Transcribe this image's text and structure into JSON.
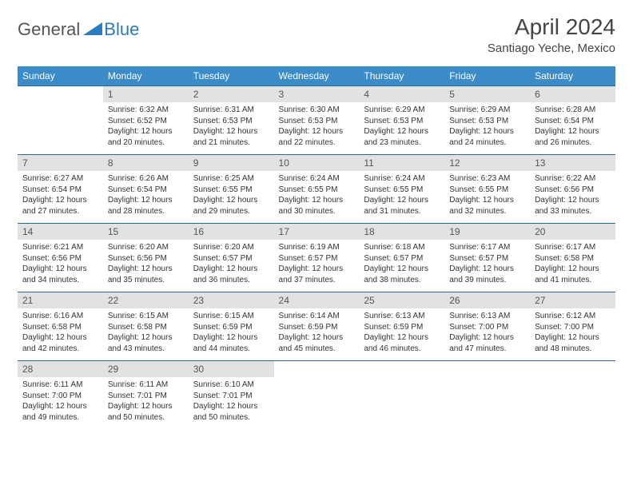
{
  "logo": {
    "text1": "General",
    "text2": "Blue",
    "color1": "#555555",
    "color2": "#2a7bbf",
    "icon_color": "#2a7bbf"
  },
  "title": "April 2024",
  "location": "Santiago Yeche, Mexico",
  "colors": {
    "header_bg": "#3b8bc9",
    "header_text": "#ffffff",
    "daynum_bg": "#e2e2e2",
    "border": "#2a6a9e",
    "text": "#333333"
  },
  "fonts": {
    "title_size": 28,
    "location_size": 15,
    "header_size": 12,
    "daynum_size": 12,
    "body_size": 10
  },
  "weekdays": [
    "Sunday",
    "Monday",
    "Tuesday",
    "Wednesday",
    "Thursday",
    "Friday",
    "Saturday"
  ],
  "weeks": [
    [
      null,
      {
        "day": "1",
        "sunrise": "Sunrise: 6:32 AM",
        "sunset": "Sunset: 6:52 PM",
        "daylight1": "Daylight: 12 hours",
        "daylight2": "and 20 minutes."
      },
      {
        "day": "2",
        "sunrise": "Sunrise: 6:31 AM",
        "sunset": "Sunset: 6:53 PM",
        "daylight1": "Daylight: 12 hours",
        "daylight2": "and 21 minutes."
      },
      {
        "day": "3",
        "sunrise": "Sunrise: 6:30 AM",
        "sunset": "Sunset: 6:53 PM",
        "daylight1": "Daylight: 12 hours",
        "daylight2": "and 22 minutes."
      },
      {
        "day": "4",
        "sunrise": "Sunrise: 6:29 AM",
        "sunset": "Sunset: 6:53 PM",
        "daylight1": "Daylight: 12 hours",
        "daylight2": "and 23 minutes."
      },
      {
        "day": "5",
        "sunrise": "Sunrise: 6:29 AM",
        "sunset": "Sunset: 6:53 PM",
        "daylight1": "Daylight: 12 hours",
        "daylight2": "and 24 minutes."
      },
      {
        "day": "6",
        "sunrise": "Sunrise: 6:28 AM",
        "sunset": "Sunset: 6:54 PM",
        "daylight1": "Daylight: 12 hours",
        "daylight2": "and 26 minutes."
      }
    ],
    [
      {
        "day": "7",
        "sunrise": "Sunrise: 6:27 AM",
        "sunset": "Sunset: 6:54 PM",
        "daylight1": "Daylight: 12 hours",
        "daylight2": "and 27 minutes."
      },
      {
        "day": "8",
        "sunrise": "Sunrise: 6:26 AM",
        "sunset": "Sunset: 6:54 PM",
        "daylight1": "Daylight: 12 hours",
        "daylight2": "and 28 minutes."
      },
      {
        "day": "9",
        "sunrise": "Sunrise: 6:25 AM",
        "sunset": "Sunset: 6:55 PM",
        "daylight1": "Daylight: 12 hours",
        "daylight2": "and 29 minutes."
      },
      {
        "day": "10",
        "sunrise": "Sunrise: 6:24 AM",
        "sunset": "Sunset: 6:55 PM",
        "daylight1": "Daylight: 12 hours",
        "daylight2": "and 30 minutes."
      },
      {
        "day": "11",
        "sunrise": "Sunrise: 6:24 AM",
        "sunset": "Sunset: 6:55 PM",
        "daylight1": "Daylight: 12 hours",
        "daylight2": "and 31 minutes."
      },
      {
        "day": "12",
        "sunrise": "Sunrise: 6:23 AM",
        "sunset": "Sunset: 6:55 PM",
        "daylight1": "Daylight: 12 hours",
        "daylight2": "and 32 minutes."
      },
      {
        "day": "13",
        "sunrise": "Sunrise: 6:22 AM",
        "sunset": "Sunset: 6:56 PM",
        "daylight1": "Daylight: 12 hours",
        "daylight2": "and 33 minutes."
      }
    ],
    [
      {
        "day": "14",
        "sunrise": "Sunrise: 6:21 AM",
        "sunset": "Sunset: 6:56 PM",
        "daylight1": "Daylight: 12 hours",
        "daylight2": "and 34 minutes."
      },
      {
        "day": "15",
        "sunrise": "Sunrise: 6:20 AM",
        "sunset": "Sunset: 6:56 PM",
        "daylight1": "Daylight: 12 hours",
        "daylight2": "and 35 minutes."
      },
      {
        "day": "16",
        "sunrise": "Sunrise: 6:20 AM",
        "sunset": "Sunset: 6:57 PM",
        "daylight1": "Daylight: 12 hours",
        "daylight2": "and 36 minutes."
      },
      {
        "day": "17",
        "sunrise": "Sunrise: 6:19 AM",
        "sunset": "Sunset: 6:57 PM",
        "daylight1": "Daylight: 12 hours",
        "daylight2": "and 37 minutes."
      },
      {
        "day": "18",
        "sunrise": "Sunrise: 6:18 AM",
        "sunset": "Sunset: 6:57 PM",
        "daylight1": "Daylight: 12 hours",
        "daylight2": "and 38 minutes."
      },
      {
        "day": "19",
        "sunrise": "Sunrise: 6:17 AM",
        "sunset": "Sunset: 6:57 PM",
        "daylight1": "Daylight: 12 hours",
        "daylight2": "and 39 minutes."
      },
      {
        "day": "20",
        "sunrise": "Sunrise: 6:17 AM",
        "sunset": "Sunset: 6:58 PM",
        "daylight1": "Daylight: 12 hours",
        "daylight2": "and 41 minutes."
      }
    ],
    [
      {
        "day": "21",
        "sunrise": "Sunrise: 6:16 AM",
        "sunset": "Sunset: 6:58 PM",
        "daylight1": "Daylight: 12 hours",
        "daylight2": "and 42 minutes."
      },
      {
        "day": "22",
        "sunrise": "Sunrise: 6:15 AM",
        "sunset": "Sunset: 6:58 PM",
        "daylight1": "Daylight: 12 hours",
        "daylight2": "and 43 minutes."
      },
      {
        "day": "23",
        "sunrise": "Sunrise: 6:15 AM",
        "sunset": "Sunset: 6:59 PM",
        "daylight1": "Daylight: 12 hours",
        "daylight2": "and 44 minutes."
      },
      {
        "day": "24",
        "sunrise": "Sunrise: 6:14 AM",
        "sunset": "Sunset: 6:59 PM",
        "daylight1": "Daylight: 12 hours",
        "daylight2": "and 45 minutes."
      },
      {
        "day": "25",
        "sunrise": "Sunrise: 6:13 AM",
        "sunset": "Sunset: 6:59 PM",
        "daylight1": "Daylight: 12 hours",
        "daylight2": "and 46 minutes."
      },
      {
        "day": "26",
        "sunrise": "Sunrise: 6:13 AM",
        "sunset": "Sunset: 7:00 PM",
        "daylight1": "Daylight: 12 hours",
        "daylight2": "and 47 minutes."
      },
      {
        "day": "27",
        "sunrise": "Sunrise: 6:12 AM",
        "sunset": "Sunset: 7:00 PM",
        "daylight1": "Daylight: 12 hours",
        "daylight2": "and 48 minutes."
      }
    ],
    [
      {
        "day": "28",
        "sunrise": "Sunrise: 6:11 AM",
        "sunset": "Sunset: 7:00 PM",
        "daylight1": "Daylight: 12 hours",
        "daylight2": "and 49 minutes."
      },
      {
        "day": "29",
        "sunrise": "Sunrise: 6:11 AM",
        "sunset": "Sunset: 7:01 PM",
        "daylight1": "Daylight: 12 hours",
        "daylight2": "and 50 minutes."
      },
      {
        "day": "30",
        "sunrise": "Sunrise: 6:10 AM",
        "sunset": "Sunset: 7:01 PM",
        "daylight1": "Daylight: 12 hours",
        "daylight2": "and 50 minutes."
      },
      null,
      null,
      null,
      null
    ]
  ]
}
